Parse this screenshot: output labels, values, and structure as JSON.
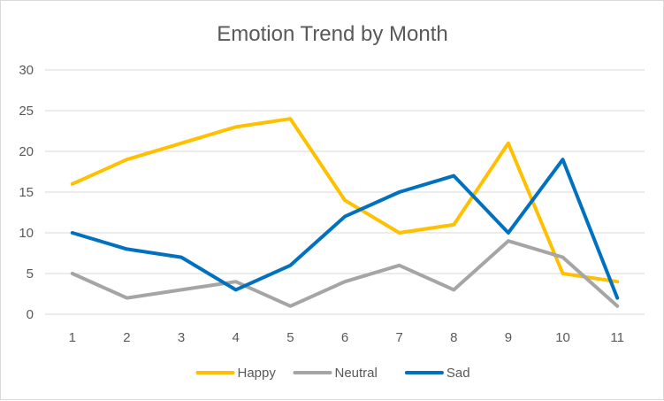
{
  "chart_data": {
    "type": "line",
    "title": "Emotion Trend by Month",
    "categories": [
      "1",
      "2",
      "3",
      "4",
      "5",
      "6",
      "7",
      "8",
      "9",
      "10",
      "11"
    ],
    "series": [
      {
        "name": "Happy",
        "color": "#FFC000",
        "values": [
          16,
          19,
          21,
          23,
          24,
          14,
          10,
          11,
          21,
          5,
          4
        ]
      },
      {
        "name": "Neutral",
        "color": "#A5A5A5",
        "values": [
          5,
          2,
          3,
          4,
          1,
          4,
          6,
          3,
          9,
          7,
          1
        ]
      },
      {
        "name": "Sad",
        "color": "#0070C0",
        "values": [
          10,
          8,
          7,
          3,
          6,
          12,
          15,
          17,
          10,
          19,
          2
        ]
      }
    ],
    "ylim": [
      0,
      30
    ],
    "yticks": [
      0,
      5,
      10,
      15,
      20,
      25,
      30
    ],
    "grid": true,
    "legend": "bottom"
  }
}
